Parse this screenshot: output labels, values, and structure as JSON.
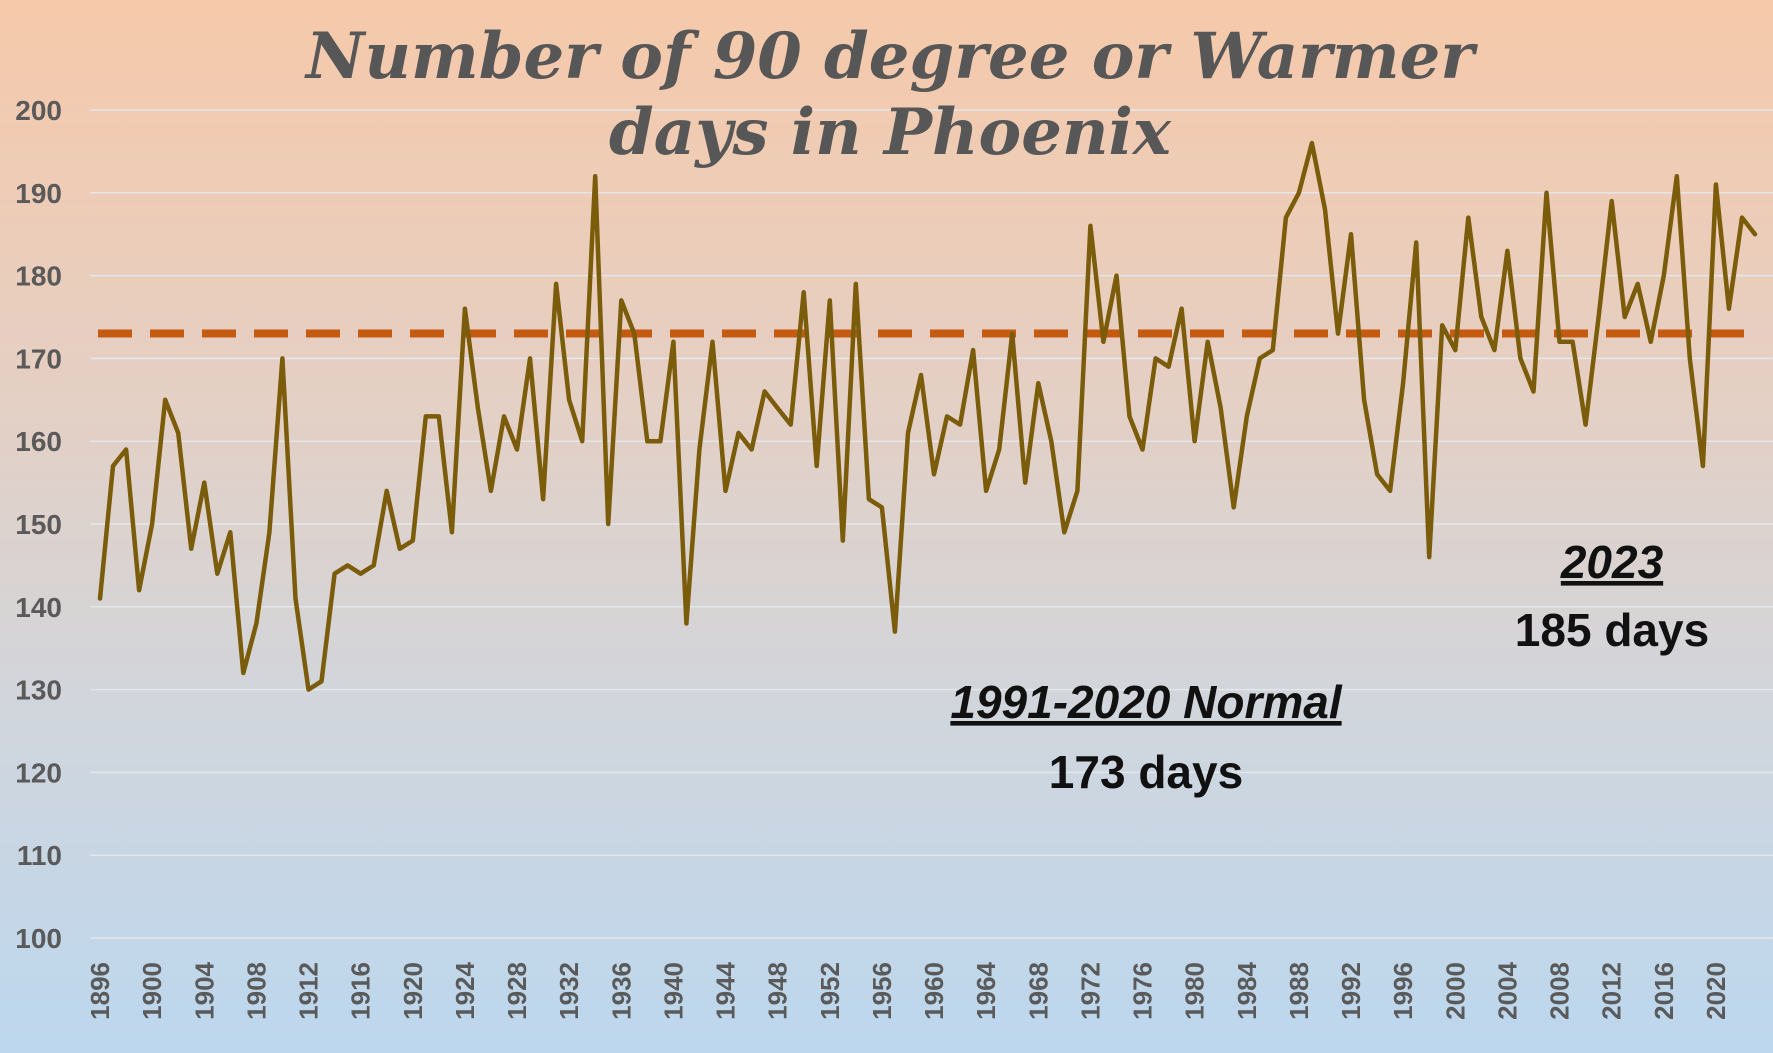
{
  "chart_data": {
    "type": "line",
    "title_lines": [
      "Number of 90 degree or Warmer",
      "days in Phoenix"
    ],
    "xlabel": "",
    "ylabel": "",
    "ylim": [
      100,
      200
    ],
    "yticks": [
      100,
      110,
      120,
      130,
      140,
      150,
      160,
      170,
      180,
      190,
      200
    ],
    "xticks": [
      1896,
      1900,
      1904,
      1908,
      1912,
      1916,
      1920,
      1924,
      1928,
      1932,
      1936,
      1940,
      1944,
      1948,
      1952,
      1956,
      1960,
      1964,
      1968,
      1972,
      1976,
      1980,
      1984,
      1988,
      1992,
      1996,
      2000,
      2004,
      2008,
      2012,
      2016,
      2020
    ],
    "grid": true,
    "legend": "none",
    "x_start": 1896,
    "x_end": 2023,
    "series": [
      {
        "color": "#7a5c0a",
        "x": [
          1896,
          1897,
          1898,
          1899,
          1900,
          1901,
          1902,
          1903,
          1904,
          1905,
          1906,
          1907,
          1908,
          1909,
          1910,
          1911,
          1912,
          1913,
          1914,
          1915,
          1916,
          1917,
          1918,
          1919,
          1920,
          1921,
          1922,
          1923,
          1924,
          1925,
          1926,
          1927,
          1928,
          1929,
          1930,
          1931,
          1932,
          1933,
          1934,
          1935,
          1936,
          1937,
          1938,
          1939,
          1940,
          1941,
          1942,
          1943,
          1944,
          1945,
          1946,
          1947,
          1948,
          1949,
          1950,
          1951,
          1952,
          1953,
          1954,
          1955,
          1956,
          1957,
          1958,
          1959,
          1960,
          1961,
          1962,
          1963,
          1964,
          1965,
          1966,
          1967,
          1968,
          1969,
          1970,
          1971,
          1972,
          1973,
          1974,
          1975,
          1976,
          1977,
          1978,
          1979,
          1980,
          1981,
          1982,
          1983,
          1984,
          1985,
          1986,
          1987,
          1988,
          1989,
          1990,
          1991,
          1992,
          1993,
          1994,
          1995,
          1996,
          1997,
          1998,
          1999,
          2000,
          2001,
          2002,
          2003,
          2004,
          2005,
          2006,
          2007,
          2008,
          2009,
          2010,
          2011,
          2012,
          2013,
          2014,
          2015,
          2016,
          2017,
          2018,
          2019,
          2020,
          2021,
          2022,
          2023
        ],
        "y": [
          141,
          157,
          159,
          142,
          150,
          165,
          161,
          147,
          155,
          144,
          149,
          132,
          138,
          149,
          170,
          141,
          130,
          131,
          144,
          145,
          144,
          145,
          154,
          147,
          148,
          163,
          163,
          149,
          176,
          164,
          154,
          163,
          159,
          170,
          153,
          179,
          165,
          160,
          192,
          150,
          177,
          173,
          160,
          160,
          172,
          138,
          159,
          172,
          154,
          161,
          159,
          166,
          164,
          162,
          178,
          157,
          177,
          148,
          179,
          153,
          152,
          137,
          161,
          168,
          156,
          163,
          162,
          171,
          154,
          159,
          173,
          155,
          167,
          160,
          149,
          154,
          186,
          172,
          180,
          163,
          159,
          170,
          169,
          176,
          160,
          172,
          164,
          152,
          163,
          170,
          171,
          187,
          190,
          196,
          188,
          173,
          185,
          165,
          156,
          154,
          167,
          184,
          146,
          174,
          171,
          187,
          175,
          171,
          183,
          170,
          166,
          190,
          172,
          172,
          162,
          175,
          189,
          175,
          179,
          172,
          180,
          192,
          170,
          157,
          191,
          176,
          187,
          185
        ]
      }
    ],
    "normal": {
      "value": 173,
      "color": "#c55a11",
      "label": "1991-2020 Normal",
      "value_text": "173 days"
    },
    "annotation_2023": {
      "label": "2023",
      "value_text": "185 days"
    }
  }
}
